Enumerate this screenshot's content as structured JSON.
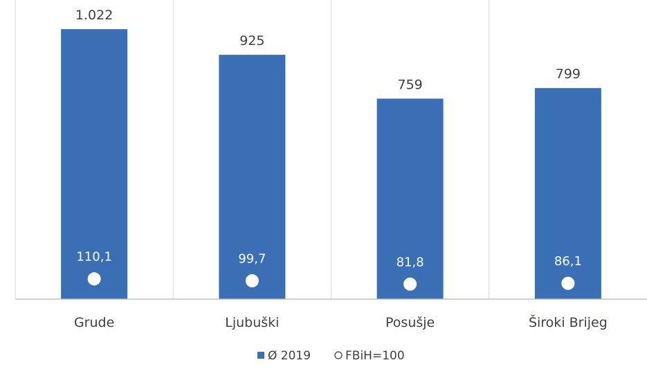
{
  "chart_data": {
    "type": "bar",
    "categories": [
      "Grude",
      "Ljubuški",
      "Posušje",
      "Široki Brijeg"
    ],
    "series": [
      {
        "name": "Ø 2019",
        "type": "bar",
        "values": [
          1022,
          925,
          759,
          799
        ],
        "labels": [
          "1.022",
          "925",
          "759",
          "799"
        ],
        "color": "#3a6fb6"
      },
      {
        "name": "FBiH=100",
        "type": "scatter",
        "values": [
          110.1,
          99.7,
          81.8,
          86.1
        ],
        "labels": [
          "110,1",
          "99,7",
          "81,8",
          "86,1"
        ],
        "color": "#ffffff"
      }
    ],
    "ylim": [
      0,
      1080
    ],
    "index_ylim": [
      0,
      1550
    ],
    "grid": false,
    "legend": {
      "position": "bottom",
      "items": [
        {
          "symbol": "■",
          "label": "Ø 2019"
        },
        {
          "symbol": "○",
          "label": "FBiH=100"
        }
      ]
    }
  }
}
